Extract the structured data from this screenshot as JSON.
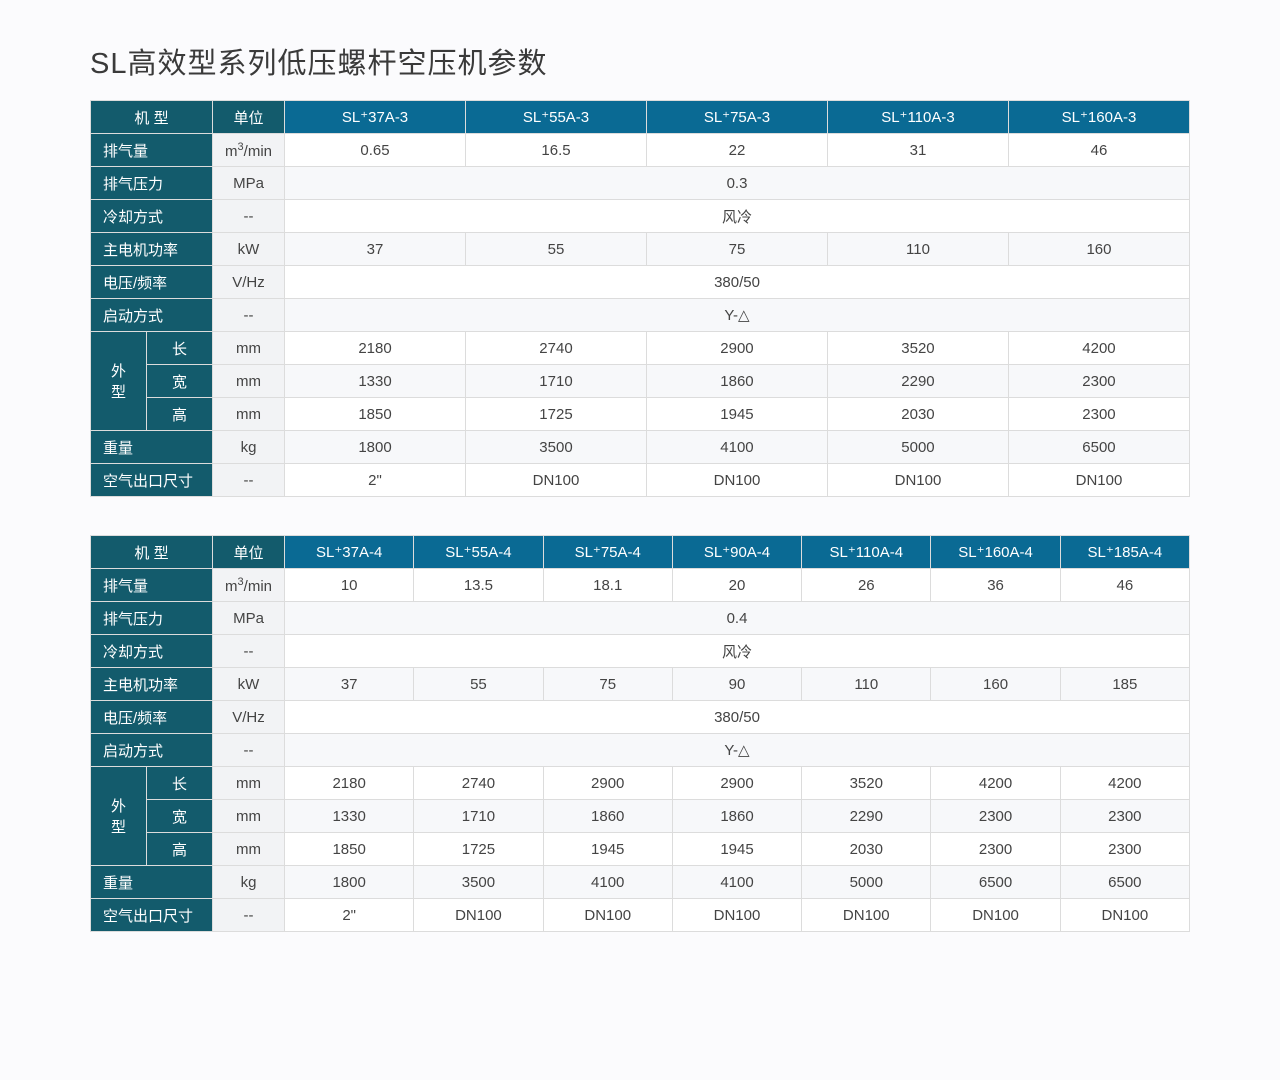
{
  "title": "SL高效型系列低压螺杆空压机参数",
  "labels": {
    "model": "机 型",
    "unit": "单位",
    "airflow": "排气量",
    "pressure": "排气压力",
    "cooling": "冷却方式",
    "motor": "主电机功率",
    "voltage": "电压/频率",
    "start": "启动方式",
    "dim": "外\n型",
    "len": "长",
    "wid": "宽",
    "hei": "高",
    "weight": "重量",
    "outlet": "空气出口尺寸"
  },
  "units": {
    "airflow_html": "m<sup class='sup3'>3</sup>/min",
    "pressure": "MPa",
    "dash": "--",
    "kw": "kW",
    "vhz": "V/Hz",
    "mm": "mm",
    "kg": "kg"
  },
  "t1": {
    "models": [
      "SL⁺37A-3",
      "SL⁺55A-3",
      "SL⁺75A-3",
      "SL⁺110A-3",
      "SL⁺160A-3"
    ],
    "airflow": [
      "0.65",
      "16.5",
      "22",
      "31",
      "46"
    ],
    "pressure": "0.3",
    "cooling": "风冷",
    "motor": [
      "37",
      "55",
      "75",
      "110",
      "160"
    ],
    "voltage": "380/50",
    "start": "Y-△",
    "len": [
      "2180",
      "2740",
      "2900",
      "3520",
      "4200"
    ],
    "wid": [
      "1330",
      "1710",
      "1860",
      "2290",
      "2300"
    ],
    "hei": [
      "1850",
      "1725",
      "1945",
      "2030",
      "2300"
    ],
    "weight": [
      "1800",
      "3500",
      "4100",
      "5000",
      "6500"
    ],
    "outlet": [
      "2\"",
      "DN100",
      "DN100",
      "DN100",
      "DN100"
    ]
  },
  "t2": {
    "models": [
      "SL⁺37A-4",
      "SL⁺55A-4",
      "SL⁺75A-4",
      "SL⁺90A-4",
      "SL⁺110A-4",
      "SL⁺160A-4",
      "SL⁺185A-4"
    ],
    "airflow": [
      "10",
      "13.5",
      "18.1",
      "20",
      "26",
      "36",
      "46"
    ],
    "pressure": "0.4",
    "cooling": "风冷",
    "motor": [
      "37",
      "55",
      "75",
      "90",
      "110",
      "160",
      "185"
    ],
    "voltage": "380/50",
    "start": "Y-△",
    "len": [
      "2180",
      "2740",
      "2900",
      "2900",
      "3520",
      "4200",
      "4200"
    ],
    "wid": [
      "1330",
      "1710",
      "1860",
      "1860",
      "2290",
      "2300",
      "2300"
    ],
    "hei": [
      "1850",
      "1725",
      "1945",
      "1945",
      "2030",
      "2300",
      "2300"
    ],
    "weight": [
      "1800",
      "3500",
      "4100",
      "4100",
      "5000",
      "6500",
      "6500"
    ],
    "outlet": [
      "2\"",
      "DN100",
      "DN100",
      "DN100",
      "DN100",
      "DN100",
      "DN100"
    ]
  },
  "style": {
    "header_bg": "#135b6c",
    "model_bg": "#0a6a94",
    "unit_bg": "#f2f3f5",
    "row_bg": "#ffffff",
    "row_alt_bg": "#f7f8fa",
    "border": "#dcdcdc",
    "title_color": "#3a3a3a",
    "font_size_title": 29,
    "font_size_cell": 15
  }
}
